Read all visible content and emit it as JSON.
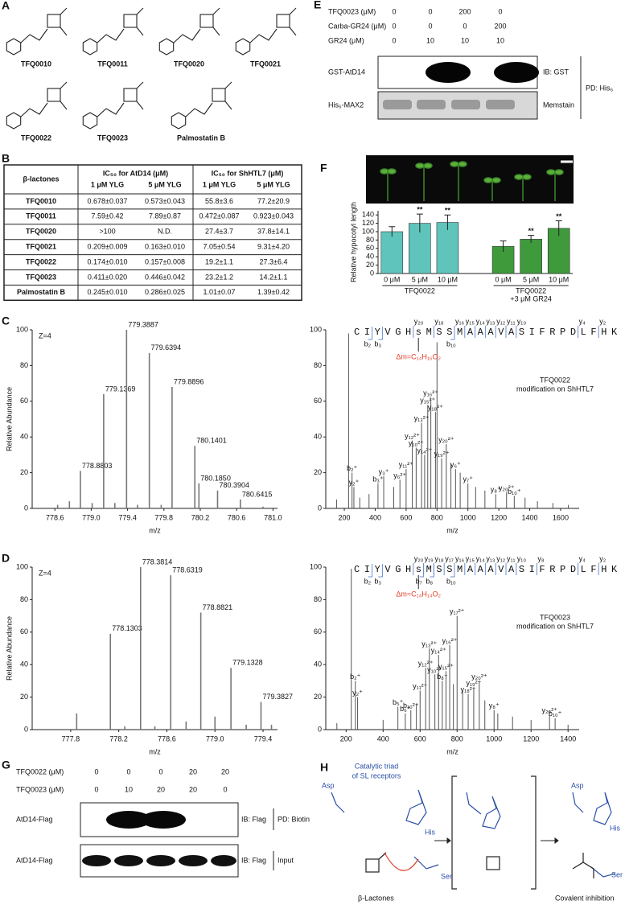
{
  "structures": {
    "letter": "A",
    "compounds": [
      "TFQ0010",
      "TFQ0011",
      "TFQ0020",
      "TFQ0021",
      "TFQ0022",
      "TFQ0023",
      "Palmostatin B"
    ]
  },
  "table": {
    "letter": "B",
    "header": [
      "β-lactones",
      "IC₅₀ for AtD14 (μM)",
      "IC₅₀ for ShHTL7 (μM)"
    ],
    "subheader": [
      "1 μM YLG",
      "5 μM YLG",
      "1 μM YLG",
      "5 μM YLG"
    ],
    "rows": [
      [
        "TFQ0010",
        "0.678±0.037",
        "0.573±0.043",
        "55.8±3.6",
        "77.2±20.9"
      ],
      [
        "TFQ0011",
        "7.59±0.42",
        "7.89±0.87",
        "0.472±0.087",
        "0.923±0.043"
      ],
      [
        "TFQ0020",
        ">100",
        "N.D.",
        "27.4±3.7",
        "37.8±14.1"
      ],
      [
        "TFQ0021",
        "0.209±0.009",
        "0.163±0.010",
        "7.05±0.54",
        "9.31±4.20"
      ],
      [
        "TFQ0022",
        "0.174±0.010",
        "0.157±0.008",
        "19.2±1.1",
        "27.3±6.4"
      ],
      [
        "TFQ0023",
        "0.411±0.020",
        "0.446±0.042",
        "23.2±1.2",
        "14.2±1.1"
      ],
      [
        "Palmostatin B",
        "0.245±0.010",
        "0.286±0.025",
        "1.01±0.07",
        "1.39±0.42"
      ]
    ]
  },
  "blot_E": {
    "letter": "E",
    "conditions": [
      {
        "label": "TFQ0023 (μM)",
        "values": [
          0,
          0,
          200,
          0
        ]
      },
      {
        "label": "Carba-GR24 (μM)",
        "values": [
          0,
          0,
          0,
          200
        ]
      },
      {
        "label": "GR24 (μM)",
        "values": [
          0,
          10,
          10,
          10
        ]
      }
    ],
    "rows": [
      {
        "label": "GST-AtD14",
        "detection": "IB: GST"
      },
      {
        "label": "His₆-MAX2",
        "detection": "Memstain"
      }
    ],
    "pulldown": "PD: His₆"
  },
  "blot_G": {
    "letter": "G",
    "conditions": [
      {
        "label": "TFQ0022 (μM)",
        "values": [
          0,
          0,
          0,
          20,
          20
        ]
      },
      {
        "label": "TFQ0023 (μM)",
        "values": [
          0,
          10,
          20,
          20,
          0
        ]
      }
    ],
    "rows": [
      {
        "label": "AtD14-Flag",
        "detection": "IB: Flag",
        "fraction": "PD: Biotin"
      },
      {
        "label": "AtD14-Flag",
        "detection": "IB: Flag",
        "fraction": "Input"
      }
    ]
  },
  "mechanism": {
    "letter": "H",
    "triad_title": [
      "Catalytic triad",
      "of SL receptors"
    ],
    "residues": [
      "Asp",
      "His",
      "Ser",
      "Asp",
      "His",
      "Ser"
    ],
    "left_caption": "β-Lactones",
    "right_caption": "Covalent inhibition"
  },
  "chart_data": [
    {
      "type": "bar",
      "panel": "F",
      "ylabel": "Relative hypocotyl length",
      "categories": [
        "0 μM",
        "5 μM",
        "10 μM",
        "0 μM",
        "5 μM",
        "10 μM"
      ],
      "values": [
        100,
        120,
        122,
        65,
        82,
        108
      ],
      "errors": [
        12,
        22,
        18,
        13,
        9,
        18
      ],
      "colors": [
        "#5fc4bb",
        "#5fc4bb",
        "#5fc4bb",
        "#3f9a3c",
        "#3f9a3c",
        "#3f9a3c"
      ],
      "significance": [
        null,
        "**",
        "**",
        null,
        "**",
        "**"
      ],
      "groups": [
        [
          "TFQ0022"
        ],
        [
          "TFQ0022",
          "+3 μM GR24"
        ]
      ],
      "ylim": [
        0,
        150
      ],
      "yticks": [
        0,
        20,
        40,
        60,
        80,
        100,
        120,
        140
      ]
    },
    {
      "type": "spectrum",
      "panel": "C",
      "charge_label": "Z=4",
      "ylabel": "Relative Abundance",
      "xlabel": "m/z",
      "x": [
        778.63,
        778.76,
        778.8803,
        779.01,
        779.1369,
        779.26,
        779.3887,
        779.51,
        779.6394,
        779.77,
        779.8896,
        780.1401,
        780.185,
        780.3904,
        780.6415,
        780.89
      ],
      "values": [
        2,
        4,
        21,
        3,
        64,
        3,
        100,
        2,
        87,
        2,
        68,
        35,
        14,
        10,
        5,
        1
      ],
      "x_labels": [
        null,
        null,
        "778.8803",
        null,
        "779.1369",
        null,
        "779.3887",
        null,
        "779.6394",
        null,
        "779.8896",
        "780.1401",
        "780.1850",
        "780.3904",
        "780.6415",
        null
      ],
      "xlim": [
        778.35,
        781.05
      ],
      "xticks": [
        778.6,
        {
          "value": 779,
          "label": "779.0"
        },
        779.4,
        779.8,
        780.2,
        780.6,
        {
          "value": 781,
          "label": "781.0"
        }
      ],
      "ylim": [
        0,
        100
      ],
      "yticks": [
        0,
        20,
        40,
        60,
        80,
        100
      ]
    },
    {
      "type": "msms",
      "xlabel": "m/z",
      "sequence": "CIYVGHsMSSMAAAVASIFRPDLFHK",
      "y_ions": [
        "y₂₀",
        "y₁₈",
        "y₁₆",
        "y₁₅",
        "y₁₄",
        "y₁₃",
        "y₁₂",
        "y₁₁",
        "y₁₀",
        "y₄",
        "y₂"
      ],
      "b_ions": [
        "b₂",
        "b₃",
        "b₁₀"
      ],
      "delta_mass": "Δm=C₁₄H₁₆O₂",
      "annotation": [
        "TFQ0022",
        "modification on ShHTL7"
      ],
      "x": [
        150,
        228,
        250,
        262,
        300,
        360,
        418,
        455,
        520,
        560,
        600,
        640,
        665,
        700,
        720,
        740,
        760,
        790,
        800,
        830,
        860,
        890,
        920,
        950,
        1000,
        1050,
        1110,
        1180,
        1250,
        1300,
        1370,
        1450,
        1550,
        1650
      ],
      "values": [
        5,
        98,
        20,
        12,
        6,
        8,
        14,
        18,
        12,
        16,
        22,
        38,
        34,
        48,
        30,
        58,
        62,
        54,
        93,
        28,
        36,
        25,
        22,
        20,
        14,
        12,
        10,
        8,
        9,
        7,
        6,
        4,
        3,
        2
      ],
      "ion_labels": [
        null,
        null,
        "b₂⁺",
        "y₂⁺",
        null,
        null,
        "b₃⁺",
        "y₃⁺",
        null,
        "y₆²⁺",
        "y₁₁²⁺",
        "y₁₂²⁺",
        "y₁₀²⁺",
        "y₁₃²⁺",
        "y₁₄²⁺",
        "y₁₅²⁺",
        "y₁₆²⁺",
        "y₁₈²⁺",
        null,
        "y₁₉²⁺",
        "y₂₀²⁺",
        null,
        "y₆⁺",
        null,
        "y₇⁺",
        null,
        null,
        "y₈⁺",
        "y₂₀²⁺",
        "b₁₀⁺",
        null,
        null,
        null,
        null
      ],
      "xlim": [
        80,
        1720
      ],
      "xticks": [
        200,
        400,
        600,
        800,
        1000,
        1200,
        1400,
        1600
      ],
      "ylim": [
        0,
        100
      ],
      "yticks": [
        0,
        20,
        40,
        60,
        80,
        100
      ]
    },
    {
      "type": "spectrum",
      "panel": "D",
      "charge_label": "Z=4",
      "ylabel": "Relative Abundance",
      "xlabel": "m/z",
      "x": [
        777.85,
        778.1303,
        778.25,
        778.3814,
        778.5,
        778.6319,
        778.76,
        778.8821,
        779.0,
        779.1328,
        779.26,
        779.3827,
        779.47
      ],
      "values": [
        10,
        59,
        2,
        100,
        2,
        95,
        5,
        72,
        8,
        38,
        3,
        17,
        3
      ],
      "x_labels": [
        null,
        "778.1303",
        null,
        "778.3814",
        null,
        "778.6319",
        null,
        "778.8821",
        null,
        "779.1328",
        null,
        "779.3827",
        null
      ],
      "xlim": [
        777.48,
        779.52
      ],
      "xticks": [
        777.8,
        778.2,
        778.6,
        {
          "value": 779,
          "label": "779.0"
        },
        779.4
      ],
      "ylim": [
        0,
        100
      ],
      "yticks": [
        0,
        20,
        40,
        60,
        80,
        100
      ]
    },
    {
      "type": "msms",
      "xlabel": "m/z",
      "sequence": "CIYVGHsMSSMAAAVASIFRPDLFHK",
      "y_ions": [
        "y₂₀",
        "y₁₉",
        "y₁₈",
        "y₁₇",
        "y₁₆",
        "y₁₅",
        "y₁₄",
        "y₁₃",
        "y₁₂",
        "y₁₁",
        "y₁₀",
        "y₈",
        "y₄",
        "y₂"
      ],
      "b_ions": [
        "b₂",
        "b₃",
        "b₇",
        "b₈",
        "b₁₀"
      ],
      "delta_mass": "Δm=C₁₄H₁₄O₂",
      "annotation": [
        "TFQ0023",
        "modification on ShHTL7"
      ],
      "x": [
        150,
        228,
        250,
        262,
        400,
        480,
        520,
        550,
        580,
        600,
        630,
        650,
        680,
        700,
        720,
        740,
        760,
        780,
        800,
        830,
        860,
        890,
        920,
        950,
        1000,
        1020,
        1100,
        1200,
        1300,
        1330,
        1400
      ],
      "values": [
        4,
        99,
        30,
        20,
        6,
        14,
        10,
        12,
        16,
        24,
        38,
        50,
        34,
        46,
        30,
        36,
        52,
        28,
        70,
        24,
        22,
        26,
        30,
        18,
        12,
        10,
        8,
        6,
        9,
        7,
        3
      ],
      "ion_labels": [
        null,
        null,
        "b₂⁺",
        "y₂⁺",
        null,
        "b₅⁺",
        "b₆⁺",
        "b₁₀²⁺",
        null,
        "y₁₁²⁺",
        "y₁₂²⁺",
        "y₁₃²⁺",
        "y₁₀²⁺",
        "y₁₄²⁺",
        "b₈⁺",
        "y₁₅²⁺",
        "y₁₆²⁺",
        null,
        "y₁₇²⁺",
        null,
        "y₁₈²⁺",
        "y₁₉²⁺",
        "y₂₀²⁺",
        null,
        "y₈⁺",
        null,
        null,
        null,
        "y₂₀²⁺",
        "b₁₀⁺",
        null
      ],
      "xlim": [
        90,
        1460
      ],
      "xticks": [
        200,
        400,
        600,
        800,
        1000,
        1200,
        1400
      ],
      "ylim": [
        0,
        100
      ],
      "yticks": [
        0,
        20,
        40,
        60,
        80,
        100
      ]
    }
  ]
}
